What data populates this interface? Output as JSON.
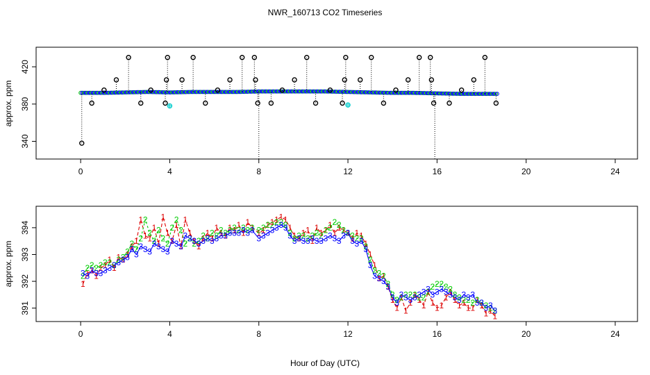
{
  "figure": {
    "title": "NWR_160713  CO2 Timeseries",
    "xlabel": "Hour of Day (UTC)"
  },
  "colors": {
    "black": "#000000",
    "blue": "#0000ff",
    "green": "#00cc00",
    "red": "#dd0000",
    "cyan": "#00cccc",
    "orange": "#ff8c00"
  },
  "chart_data": [
    {
      "type": "scatter",
      "title": "NWR_160713  CO2 Timeseries",
      "ylabel": "approx. ppm",
      "xlim": [
        -2,
        25
      ],
      "ylim": [
        321,
        441
      ],
      "xticks": [
        0,
        4,
        8,
        12,
        16,
        20,
        24
      ],
      "yticks": [
        340,
        380,
        420
      ],
      "baseline": {
        "series": "continuous (blue / green)",
        "x": [
          0,
          1,
          2,
          3,
          4,
          5,
          6,
          7,
          8,
          9,
          10,
          11,
          12,
          13,
          14,
          15,
          16,
          17,
          18,
          18.7
        ],
        "y": [
          392,
          392,
          392.5,
          393,
          392.5,
          393,
          393,
          393,
          393.5,
          393.5,
          393.5,
          393.5,
          393,
          392.5,
          392,
          392,
          391.5,
          391,
          391,
          391
        ]
      },
      "outliers": {
        "series": "black open circles (spikes, dotted drop lines to baseline)",
        "points": [
          [
            0.05,
            338
          ],
          [
            0.5,
            381
          ],
          [
            1.05,
            395
          ],
          [
            1.6,
            406
          ],
          [
            2.15,
            430
          ],
          [
            2.7,
            381
          ],
          [
            3.15,
            395
          ],
          [
            3.8,
            381
          ],
          [
            3.85,
            406
          ],
          [
            3.9,
            430
          ],
          [
            4.55,
            406
          ],
          [
            5.05,
            430
          ],
          [
            5.6,
            381
          ],
          [
            6.15,
            395
          ],
          [
            6.7,
            406
          ],
          [
            7.25,
            430
          ],
          [
            7.8,
            430
          ],
          [
            7.85,
            406
          ],
          [
            7.95,
            381
          ],
          [
            8,
            321
          ],
          [
            8.55,
            381
          ],
          [
            9.05,
            395
          ],
          [
            9.6,
            406
          ],
          [
            10.15,
            430
          ],
          [
            10.55,
            381
          ],
          [
            11.2,
            395
          ],
          [
            11.75,
            381
          ],
          [
            11.85,
            406
          ],
          [
            11.9,
            430
          ],
          [
            12.55,
            406
          ],
          [
            13.05,
            430
          ],
          [
            13.6,
            381
          ],
          [
            14.15,
            395
          ],
          [
            14.7,
            406
          ],
          [
            15.2,
            430
          ],
          [
            15.7,
            430
          ],
          [
            15.75,
            406
          ],
          [
            15.85,
            381
          ],
          [
            15.9,
            321
          ],
          [
            16.55,
            381
          ],
          [
            17.1,
            395
          ],
          [
            17.65,
            406
          ],
          [
            18.15,
            430
          ],
          [
            18.65,
            381
          ]
        ]
      },
      "flags": {
        "series": "cyan stars",
        "points": [
          [
            4.0,
            378
          ],
          [
            12.0,
            379
          ]
        ]
      }
    },
    {
      "type": "line",
      "ylabel": "approx. ppm",
      "xlim": [
        -2,
        25
      ],
      "ylim": [
        390.5,
        394.8
      ],
      "xticks": [
        0,
        4,
        8,
        12,
        16,
        20,
        24
      ],
      "yticks": [
        391,
        392,
        393,
        394
      ],
      "series": [
        {
          "name": "1",
          "color": "#dd0000",
          "x": [
            0.1,
            0.3,
            0.5,
            0.7,
            0.9,
            1.1,
            1.3,
            1.5,
            1.7,
            1.9,
            2.1,
            2.3,
            2.5,
            2.7,
            2.9,
            3.1,
            3.3,
            3.5,
            3.7,
            3.9,
            4.1,
            4.3,
            4.5,
            4.7,
            4.9,
            5.1,
            5.3,
            5.5,
            5.7,
            5.9,
            6.1,
            6.3,
            6.5,
            6.7,
            6.9,
            7.1,
            7.3,
            7.5,
            7.7,
            8.0,
            8.2,
            8.4,
            8.6,
            8.8,
            9.0,
            9.2,
            9.4,
            9.6,
            9.8,
            10.0,
            10.2,
            10.4,
            10.6,
            10.8,
            11.0,
            11.2,
            11.4,
            11.6,
            11.8,
            12.0,
            12.2,
            12.4,
            12.6,
            12.8,
            13.0,
            13.2,
            13.4,
            13.6,
            13.8,
            14.0,
            14.2,
            14.4,
            14.6,
            14.8,
            15.0,
            15.2,
            15.4,
            15.6,
            15.8,
            16.0,
            16.2,
            16.4,
            16.6,
            16.8,
            17.0,
            17.2,
            17.4,
            17.6,
            17.8,
            18.0,
            18.2,
            18.4,
            18.6
          ],
          "y": [
            391.9,
            392.3,
            392.4,
            392.2,
            392.5,
            392.6,
            392.8,
            392.5,
            392.9,
            392.8,
            393.0,
            393.3,
            393.5,
            394.3,
            393.7,
            393.6,
            394.0,
            393.4,
            394.4,
            393.8,
            393.5,
            394.1,
            393.3,
            394.3,
            393.8,
            393.5,
            393.3,
            393.6,
            393.8,
            393.6,
            394.0,
            393.8,
            393.7,
            394.0,
            393.9,
            394.1,
            393.8,
            394.2,
            394.0,
            393.8,
            393.9,
            394.1,
            394.2,
            394.3,
            394.4,
            394.3,
            394.0,
            393.7,
            393.6,
            393.8,
            393.9,
            393.5,
            394.0,
            393.8,
            393.9,
            394.1,
            393.8,
            394.0,
            393.9,
            393.8,
            393.6,
            393.8,
            393.7,
            393.4,
            393.0,
            392.6,
            392.1,
            392.2,
            391.8,
            391.3,
            391.0,
            391.4,
            390.9,
            391.2,
            391.5,
            391.3,
            391.1,
            391.6,
            391.2,
            391.0,
            391.1,
            391.4,
            391.6,
            391.3,
            391.1,
            391.2,
            391.0,
            391.0,
            391.3,
            391.1,
            390.8,
            390.9,
            390.7
          ]
        },
        {
          "name": "2",
          "color": "#00cc00",
          "x": [
            0.1,
            0.3,
            0.5,
            0.7,
            0.9,
            1.1,
            1.3,
            1.5,
            1.7,
            1.9,
            2.1,
            2.3,
            2.5,
            2.7,
            2.9,
            3.1,
            3.3,
            3.5,
            3.7,
            3.9,
            4.1,
            4.3,
            4.5,
            4.7,
            4.9,
            5.1,
            5.3,
            5.5,
            5.7,
            5.9,
            6.1,
            6.3,
            6.5,
            6.7,
            6.9,
            7.1,
            7.3,
            7.5,
            7.7,
            8.0,
            8.2,
            8.4,
            8.6,
            8.8,
            9.0,
            9.2,
            9.4,
            9.6,
            9.8,
            10.0,
            10.2,
            10.4,
            10.6,
            10.8,
            11.0,
            11.2,
            11.4,
            11.6,
            11.8,
            12.0,
            12.2,
            12.4,
            12.6,
            12.8,
            13.0,
            13.2,
            13.4,
            13.6,
            13.8,
            14.0,
            14.2,
            14.4,
            14.6,
            14.8,
            15.0,
            15.2,
            15.4,
            15.6,
            15.8,
            16.0,
            16.2,
            16.4,
            16.6,
            16.8,
            17.0,
            17.2,
            17.4,
            17.6,
            17.8,
            18.0,
            18.2,
            18.4,
            18.6
          ],
          "y": [
            392.2,
            392.5,
            392.6,
            392.5,
            392.6,
            392.7,
            392.7,
            392.6,
            392.8,
            392.9,
            393.1,
            393.4,
            393.2,
            393.6,
            394.3,
            393.8,
            393.5,
            393.9,
            393.6,
            393.4,
            394.0,
            394.3,
            393.9,
            393.4,
            393.6,
            393.4,
            393.5,
            393.7,
            393.6,
            393.8,
            393.7,
            393.9,
            393.8,
            393.9,
            394.0,
            393.9,
            394.0,
            393.9,
            394.0,
            393.9,
            394.0,
            394.1,
            394.1,
            394.2,
            394.2,
            394.1,
            393.8,
            393.6,
            393.7,
            393.7,
            393.6,
            393.7,
            393.8,
            393.7,
            393.9,
            394.0,
            394.2,
            394.1,
            393.9,
            393.8,
            393.7,
            393.6,
            393.6,
            393.3,
            392.8,
            392.4,
            392.3,
            392.2,
            391.9,
            391.5,
            391.3,
            391.4,
            391.5,
            391.5,
            391.5,
            391.4,
            391.4,
            391.6,
            391.8,
            391.9,
            391.9,
            391.8,
            391.7,
            391.5,
            391.4,
            391.3,
            391.3,
            391.2,
            391.3,
            391.2,
            391.1,
            391.0,
            390.9
          ]
        },
        {
          "name": "3",
          "color": "#0000ff",
          "x": [
            0.1,
            0.3,
            0.5,
            0.7,
            0.9,
            1.1,
            1.3,
            1.5,
            1.7,
            1.9,
            2.1,
            2.3,
            2.5,
            2.7,
            2.9,
            3.1,
            3.3,
            3.5,
            3.7,
            3.9,
            4.1,
            4.3,
            4.5,
            4.7,
            4.9,
            5.1,
            5.3,
            5.5,
            5.7,
            5.9,
            6.1,
            6.3,
            6.5,
            6.7,
            6.9,
            7.1,
            7.3,
            7.5,
            7.7,
            8.0,
            8.2,
            8.4,
            8.6,
            8.8,
            9.0,
            9.2,
            9.4,
            9.6,
            9.8,
            10.0,
            10.2,
            10.4,
            10.6,
            10.8,
            11.0,
            11.2,
            11.4,
            11.6,
            11.8,
            12.0,
            12.2,
            12.4,
            12.6,
            12.8,
            13.0,
            13.2,
            13.4,
            13.6,
            13.8,
            14.0,
            14.2,
            14.4,
            14.6,
            14.8,
            15.0,
            15.2,
            15.4,
            15.6,
            15.8,
            16.0,
            16.2,
            16.4,
            16.6,
            16.8,
            17.0,
            17.2,
            17.4,
            17.6,
            17.8,
            18.0,
            18.2,
            18.4,
            18.6
          ],
          "y": [
            392.3,
            392.2,
            392.4,
            392.3,
            392.3,
            392.4,
            392.5,
            392.6,
            392.7,
            392.8,
            392.9,
            393.2,
            393.0,
            393.3,
            393.2,
            393.1,
            393.4,
            393.3,
            393.2,
            393.1,
            393.5,
            393.4,
            393.3,
            393.7,
            393.6,
            393.5,
            393.4,
            393.5,
            393.6,
            393.5,
            393.6,
            393.7,
            393.7,
            393.8,
            393.8,
            393.8,
            393.9,
            393.8,
            393.9,
            393.6,
            393.7,
            393.8,
            393.9,
            394.0,
            394.1,
            394.0,
            393.7,
            393.5,
            393.6,
            393.5,
            393.5,
            393.6,
            393.5,
            393.5,
            393.6,
            393.7,
            393.6,
            393.5,
            393.7,
            393.8,
            393.5,
            393.4,
            393.5,
            393.2,
            392.6,
            392.2,
            392.1,
            392.0,
            391.8,
            391.4,
            391.2,
            391.5,
            391.4,
            391.3,
            391.4,
            391.5,
            391.6,
            391.7,
            391.5,
            391.6,
            391.7,
            391.6,
            391.5,
            391.4,
            391.3,
            391.5,
            391.4,
            391.5,
            391.2,
            391.2,
            391.0,
            391.1,
            390.9
          ]
        }
      ]
    }
  ]
}
